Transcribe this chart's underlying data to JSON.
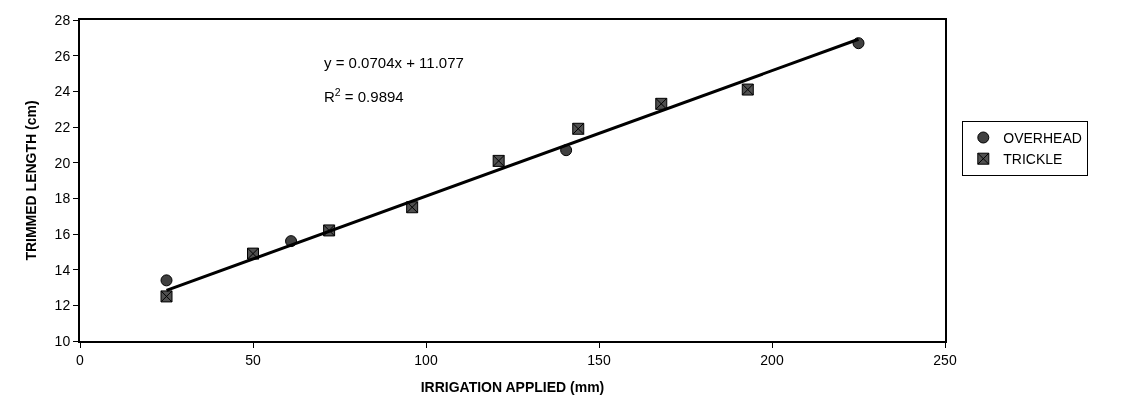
{
  "chart_data": {
    "type": "scatter",
    "xlabel": "IRRIGATION APPLIED (mm)",
    "ylabel": "TRIMMED LENGTH (cm)",
    "xlim": [
      0,
      250
    ],
    "xticks": [
      0,
      50,
      100,
      150,
      200,
      250
    ],
    "ylim": [
      10,
      28
    ],
    "yticks": [
      10,
      12,
      14,
      16,
      18,
      20,
      22,
      24,
      26,
      28
    ],
    "legend": "right",
    "annotations": [
      "y = 0.0704x + 11.077",
      "R$^{2}$ = 0.9894"
    ],
    "series": [
      {
        "name": "OVERHEAD",
        "color": "#404040",
        "marker": "circle",
        "x": [
          25,
          61,
          140.5,
          168,
          225
        ],
        "values": [
          13.4,
          15.6,
          20.7,
          null,
          26.7
        ]
      },
      {
        "name": "TRICKLE",
        "color": "#505050",
        "marker": "cross",
        "x": [
          25,
          50,
          72,
          96,
          121,
          144,
          168,
          193
        ],
        "values": [
          12.5,
          14.9,
          16.2,
          17.5,
          20.1,
          21.9,
          23.3,
          24.1
        ]
      },
      {
        "type": "line",
        "color": "#000000",
        "marker": "none",
        "x": [
          25,
          225
        ],
        "values": [
          12.84,
          26.92
        ]
      }
    ]
  }
}
